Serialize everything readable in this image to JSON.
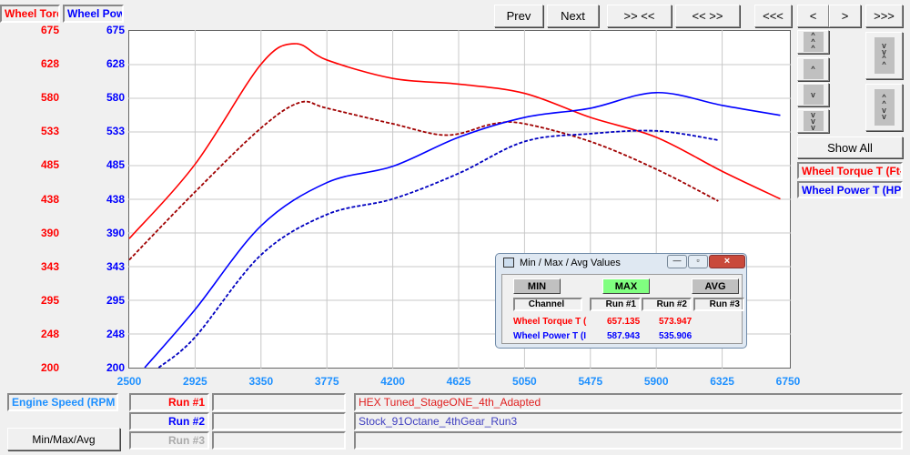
{
  "axis_labels": {
    "torque": "Wheel Torque",
    "power": "Wheel Power"
  },
  "y_ticks": [
    "675",
    "628",
    "580",
    "533",
    "485",
    "438",
    "390",
    "343",
    "295",
    "248",
    "200"
  ],
  "x_ticks": [
    "2500",
    "2925",
    "3350",
    "3775",
    "4200",
    "4625",
    "5050",
    "5475",
    "5900",
    "6325",
    "6750"
  ],
  "toolbar": {
    "prev": "Prev",
    "next": "Next",
    "zoom_in": ">> <<",
    "zoom_out": "<< >>",
    "scroll_left_fast": "<<<",
    "left": "<",
    "right": ">",
    "scroll_right_fast": ">>>"
  },
  "side": {
    "show_all": "Show All",
    "legend": [
      "Wheel Torque T (Ft-",
      "Wheel Power T (HP)"
    ]
  },
  "bottom": {
    "x_channel": "Engine Speed (RPM",
    "minmax_button": "Min/Max/Avg",
    "runs": [
      {
        "label": "Run #1",
        "name": "HEX Tuned_StageONE_4th_Adapted"
      },
      {
        "label": "Run #2",
        "name": "Stock_91Octane_4thGear_Run3"
      },
      {
        "label": "Run #3",
        "name": ""
      }
    ]
  },
  "dialog": {
    "title": "Min / Max / Avg Values",
    "min": "MIN",
    "max": "MAX",
    "avg": "AVG",
    "headers": [
      "Channel",
      "Run #1",
      "Run #2",
      "Run #3"
    ],
    "rows": [
      {
        "channel": "Wheel Torque T (",
        "run1": "657.135",
        "run2": "573.947"
      },
      {
        "channel": "Wheel Power T (I",
        "run1": "587.943",
        "run2": "535.906"
      }
    ]
  },
  "colors": {
    "torque": "#ff0000",
    "power": "#0000ff",
    "max_active": "#80ff80",
    "xaxis": "#1e90ff"
  },
  "chart_data": {
    "type": "line",
    "xlabel": "Engine Speed (RPM",
    "xlim": [
      2500,
      6750
    ],
    "ylim": [
      200,
      675
    ],
    "grid": true,
    "series": [
      {
        "name": "Run #1 Wheel Torque T",
        "color": "#ff0000",
        "style": "solid",
        "x": [
          2500,
          2925,
          3350,
          3570,
          3775,
          4200,
          4625,
          5050,
          5475,
          5900,
          6325,
          6700
        ],
        "y": [
          382,
          487,
          628,
          657,
          634,
          608,
          600,
          587,
          553,
          525,
          477,
          438
        ]
      },
      {
        "name": "Run #2 Wheel Torque T",
        "color": "#a00000",
        "style": "dashed",
        "x": [
          2500,
          2925,
          3350,
          3600,
          3775,
          4200,
          4550,
          4850,
          5050,
          5475,
          5900,
          6300
        ],
        "y": [
          352,
          448,
          538,
          574,
          566,
          544,
          528,
          544,
          544,
          519,
          480,
          435
        ]
      },
      {
        "name": "Run #1 Wheel Power T",
        "color": "#0000ff",
        "style": "solid",
        "x": [
          2600,
          2925,
          3350,
          3775,
          4200,
          4625,
          5050,
          5475,
          5900,
          6325,
          6700
        ],
        "y": [
          200,
          282,
          400,
          461,
          484,
          525,
          553,
          566,
          588,
          570,
          556
        ]
      },
      {
        "name": "Run #2 Wheel Power T",
        "color": "#0000c0",
        "style": "dashed",
        "x": [
          2690,
          2925,
          3350,
          3775,
          4200,
          4625,
          5050,
          5475,
          5900,
          6300
        ],
        "y": [
          200,
          243,
          359,
          416,
          438,
          474,
          519,
          530,
          534,
          521
        ]
      }
    ]
  }
}
